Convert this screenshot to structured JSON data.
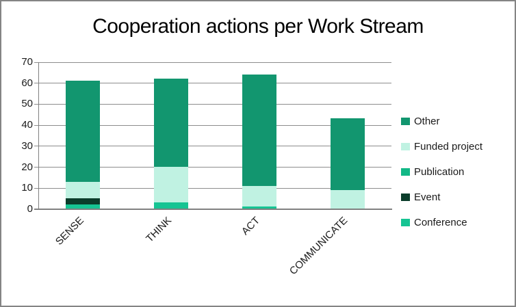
{
  "chart_data": {
    "type": "bar",
    "stacked": true,
    "title": "Cooperation actions per Work Stream",
    "categories": [
      "SENSE",
      "THINK",
      "ACT",
      "COMMUNICATE"
    ],
    "series": [
      {
        "name": "Conference",
        "color": "#16C493",
        "values": [
          2,
          3,
          1,
          0
        ]
      },
      {
        "name": "Event",
        "color": "#0B3D2B",
        "values": [
          3,
          0,
          0,
          0
        ]
      },
      {
        "name": "Publication",
        "color": "#12B886",
        "values": [
          0,
          0,
          0,
          0
        ]
      },
      {
        "name": "Funded project",
        "color": "#C0F2E2",
        "values": [
          8,
          17,
          10,
          9
        ]
      },
      {
        "name": "Other",
        "color": "#12966F",
        "values": [
          48,
          42,
          53,
          34
        ]
      }
    ],
    "totals": [
      61,
      62,
      64,
      43
    ],
    "ylim": [
      0,
      70
    ],
    "yticks": [
      0,
      10,
      20,
      30,
      40,
      50,
      60,
      70
    ],
    "grid": true,
    "grid_color": "#8C8C8C",
    "axis_color": "#808080",
    "legend_position": "right",
    "legend_order": [
      "Other",
      "Funded project",
      "Publication",
      "Event",
      "Conference"
    ],
    "xlabel": "",
    "ylabel": ""
  }
}
